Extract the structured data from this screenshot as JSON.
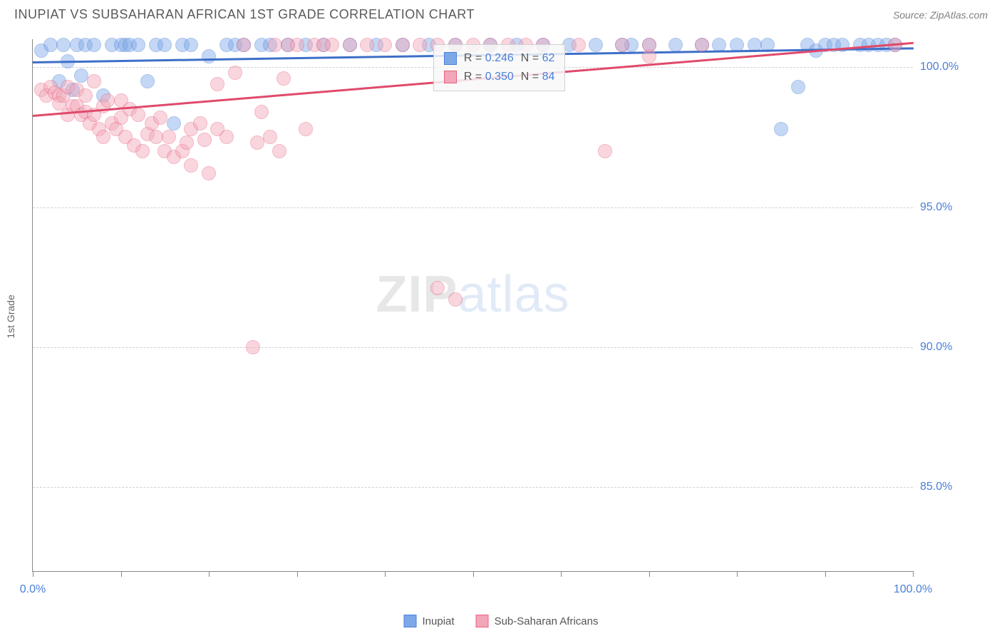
{
  "header": {
    "title": "INUPIAT VS SUBSAHARAN AFRICAN 1ST GRADE CORRELATION CHART",
    "source": "Source: ZipAtlas.com"
  },
  "chart": {
    "type": "scatter",
    "ylabel": "1st Grade",
    "xlim": [
      0,
      100
    ],
    "ylim": [
      82,
      101
    ],
    "xtick_positions": [
      0,
      10,
      20,
      30,
      40,
      50,
      60,
      70,
      80,
      90,
      100
    ],
    "xtick_labels": {
      "0": "0.0%",
      "100": "100.0%"
    },
    "ytick_positions": [
      85,
      90,
      95,
      100
    ],
    "ytick_labels": [
      "85.0%",
      "90.0%",
      "95.0%",
      "100.0%"
    ],
    "background_color": "#ffffff",
    "grid_color": "#d0d0d0",
    "marker_radius": 10,
    "marker_opacity": 0.45,
    "series": [
      {
        "name": "Inupiat",
        "fill": "#7da8e8",
        "stroke": "#4a7fd8",
        "trend_color": "#3d6fc8",
        "stats": {
          "r": "0.246",
          "n": "62"
        },
        "trend": {
          "x0": 0,
          "y0": 100.2,
          "x1": 100,
          "y1": 100.7
        },
        "points": [
          [
            1,
            100.6
          ],
          [
            2,
            100.8
          ],
          [
            3,
            99.5
          ],
          [
            3.5,
            100.8
          ],
          [
            4,
            100.2
          ],
          [
            4.5,
            99.2
          ],
          [
            5,
            100.8
          ],
          [
            5.5,
            99.7
          ],
          [
            6,
            100.8
          ],
          [
            7,
            100.8
          ],
          [
            8,
            99.0
          ],
          [
            9,
            100.8
          ],
          [
            10,
            100.8
          ],
          [
            10.5,
            100.8
          ],
          [
            11,
            100.8
          ],
          [
            12,
            100.8
          ],
          [
            13,
            99.5
          ],
          [
            14,
            100.8
          ],
          [
            15,
            100.8
          ],
          [
            16,
            98.0
          ],
          [
            17,
            100.8
          ],
          [
            18,
            100.8
          ],
          [
            20,
            100.4
          ],
          [
            22,
            100.8
          ],
          [
            23,
            100.8
          ],
          [
            24,
            100.8
          ],
          [
            26,
            100.8
          ],
          [
            27,
            100.8
          ],
          [
            29,
            100.8
          ],
          [
            31,
            100.8
          ],
          [
            33,
            100.8
          ],
          [
            36,
            100.8
          ],
          [
            39,
            100.8
          ],
          [
            42,
            100.8
          ],
          [
            45,
            100.8
          ],
          [
            48,
            100.8
          ],
          [
            52,
            100.8
          ],
          [
            55,
            100.8
          ],
          [
            58,
            100.8
          ],
          [
            61,
            100.8
          ],
          [
            64,
            100.8
          ],
          [
            67,
            100.8
          ],
          [
            68,
            100.8
          ],
          [
            70,
            100.8
          ],
          [
            73,
            100.8
          ],
          [
            76,
            100.8
          ],
          [
            78,
            100.8
          ],
          [
            80,
            100.8
          ],
          [
            82,
            100.8
          ],
          [
            83.5,
            100.8
          ],
          [
            85,
            97.8
          ],
          [
            87,
            99.3
          ],
          [
            88,
            100.8
          ],
          [
            89,
            100.6
          ],
          [
            90,
            100.8
          ],
          [
            91,
            100.8
          ],
          [
            92,
            100.8
          ],
          [
            94,
            100.8
          ],
          [
            95,
            100.8
          ],
          [
            96,
            100.8
          ],
          [
            97,
            100.8
          ],
          [
            98,
            100.8
          ]
        ]
      },
      {
        "name": "Sub-Saharan Africans",
        "fill": "#f2a6b8",
        "stroke": "#e8607f",
        "trend_color": "#e04a6a",
        "stats": {
          "r": "0.350",
          "n": "84"
        },
        "trend": {
          "x0": 0,
          "y0": 98.3,
          "x1": 100,
          "y1": 100.9
        },
        "points": [
          [
            1,
            99.2
          ],
          [
            1.5,
            99.0
          ],
          [
            2,
            99.3
          ],
          [
            2.5,
            99.1
          ],
          [
            3,
            99.0
          ],
          [
            3,
            98.7
          ],
          [
            3.5,
            99.0
          ],
          [
            4,
            99.3
          ],
          [
            4,
            98.3
          ],
          [
            4.5,
            98.6
          ],
          [
            5,
            98.6
          ],
          [
            5,
            99.2
          ],
          [
            5.5,
            98.3
          ],
          [
            6,
            98.4
          ],
          [
            6,
            99.0
          ],
          [
            6.5,
            98.0
          ],
          [
            7,
            98.3
          ],
          [
            7,
            99.5
          ],
          [
            7.5,
            97.8
          ],
          [
            8,
            98.6
          ],
          [
            8,
            97.5
          ],
          [
            8.5,
            98.8
          ],
          [
            9,
            98.0
          ],
          [
            9.5,
            97.8
          ],
          [
            10,
            98.2
          ],
          [
            10,
            98.8
          ],
          [
            10.5,
            97.5
          ],
          [
            11,
            98.5
          ],
          [
            11.5,
            97.2
          ],
          [
            12,
            98.3
          ],
          [
            12.5,
            97.0
          ],
          [
            13,
            97.6
          ],
          [
            13.5,
            98.0
          ],
          [
            14,
            97.5
          ],
          [
            14.5,
            98.2
          ],
          [
            15,
            97.0
          ],
          [
            15.5,
            97.5
          ],
          [
            16,
            96.8
          ],
          [
            17,
            97.0
          ],
          [
            17.5,
            97.3
          ],
          [
            18,
            96.5
          ],
          [
            18,
            97.8
          ],
          [
            19,
            98.0
          ],
          [
            19.5,
            97.4
          ],
          [
            20,
            96.2
          ],
          [
            21,
            99.4
          ],
          [
            21,
            97.8
          ],
          [
            22,
            97.5
          ],
          [
            23,
            99.8
          ],
          [
            24,
            100.8
          ],
          [
            25,
            90.0
          ],
          [
            25.5,
            97.3
          ],
          [
            26,
            98.4
          ],
          [
            27,
            97.5
          ],
          [
            27.5,
            100.8
          ],
          [
            28,
            97.0
          ],
          [
            28.5,
            99.6
          ],
          [
            29,
            100.8
          ],
          [
            30,
            100.8
          ],
          [
            31,
            97.8
          ],
          [
            32,
            100.8
          ],
          [
            33,
            100.8
          ],
          [
            34,
            100.8
          ],
          [
            36,
            100.8
          ],
          [
            38,
            100.8
          ],
          [
            40,
            100.8
          ],
          [
            42,
            100.8
          ],
          [
            44,
            100.8
          ],
          [
            46,
            92.1
          ],
          [
            46,
            100.8
          ],
          [
            48,
            91.7
          ],
          [
            48,
            100.8
          ],
          [
            50,
            100.8
          ],
          [
            52,
            100.8
          ],
          [
            54,
            100.8
          ],
          [
            56,
            100.8
          ],
          [
            58,
            100.8
          ],
          [
            62,
            100.8
          ],
          [
            65,
            97.0
          ],
          [
            67,
            100.8
          ],
          [
            70,
            100.4
          ],
          [
            70,
            100.8
          ],
          [
            76,
            100.8
          ],
          [
            98,
            100.8
          ]
        ]
      }
    ],
    "stats_box": {
      "left_pct": 45.5,
      "top_pct": 1
    },
    "watermark": {
      "strong": "ZIP",
      "light": "atlas"
    }
  },
  "legend": {
    "items": [
      {
        "label": "Inupiat",
        "fill": "#7da8e8",
        "stroke": "#4a7fd8"
      },
      {
        "label": "Sub-Saharan Africans",
        "fill": "#f2a6b8",
        "stroke": "#e8607f"
      }
    ]
  }
}
